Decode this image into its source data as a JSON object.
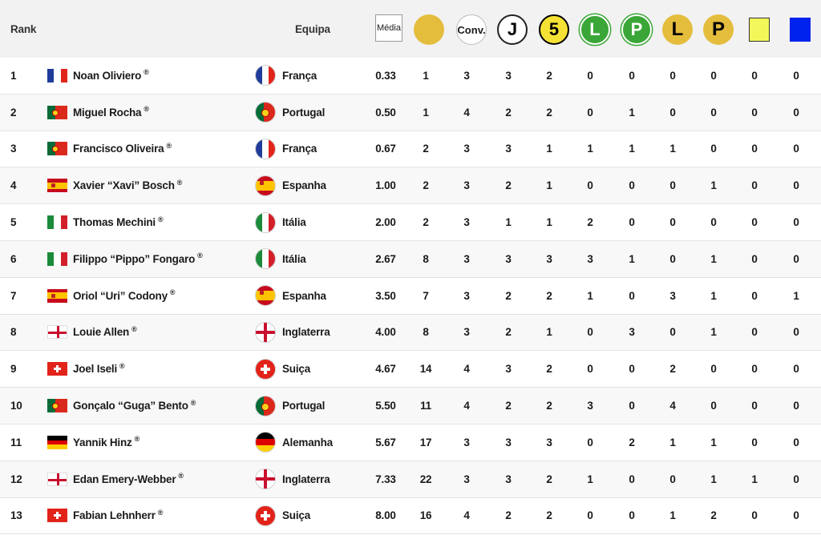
{
  "header": {
    "rank_label": "Rank",
    "team_label": "Equipa",
    "media_label": "Média",
    "conv_label": "Conv.",
    "j_label": "J",
    "five_label": "5",
    "green_l_label": "L",
    "green_p_label": "P",
    "yellow_l_label": "L",
    "yellow_p_label": "P"
  },
  "colors": {
    "green": "#3aa637",
    "gold": "#e5bd3d",
    "yellow_card": "#f4f75a",
    "blue_card": "#0022ee"
  },
  "rows": [
    {
      "rank": "1",
      "name": "Noan Oliviero",
      "flag": "fr",
      "team": "França",
      "team_flag": "fr",
      "media": "0.33",
      "v": [
        "1",
        "3",
        "3",
        "2",
        "0",
        "0",
        "0",
        "0",
        "0",
        "0"
      ]
    },
    {
      "rank": "2",
      "name": "Miguel Rocha",
      "flag": "pt",
      "team": "Portugal",
      "team_flag": "pt",
      "media": "0.50",
      "v": [
        "1",
        "4",
        "2",
        "2",
        "0",
        "1",
        "0",
        "0",
        "0",
        "0"
      ]
    },
    {
      "rank": "3",
      "name": "Francisco Oliveira",
      "flag": "pt",
      "team": "França",
      "team_flag": "fr",
      "media": "0.67",
      "v": [
        "2",
        "3",
        "3",
        "1",
        "1",
        "1",
        "1",
        "0",
        "0",
        "0"
      ]
    },
    {
      "rank": "4",
      "name": "Xavier “Xavi” Bosch",
      "flag": "es",
      "team": "Espanha",
      "team_flag": "es",
      "media": "1.00",
      "v": [
        "2",
        "3",
        "2",
        "1",
        "0",
        "0",
        "0",
        "1",
        "0",
        "0"
      ]
    },
    {
      "rank": "5",
      "name": "Thomas Mechini",
      "flag": "it",
      "team": "Itália",
      "team_flag": "it",
      "media": "2.00",
      "v": [
        "2",
        "3",
        "1",
        "1",
        "2",
        "0",
        "0",
        "0",
        "0",
        "0"
      ]
    },
    {
      "rank": "6",
      "name": "Filippo “Pippo” Fongaro",
      "flag": "it",
      "team": "Itália",
      "team_flag": "it",
      "media": "2.67",
      "v": [
        "8",
        "3",
        "3",
        "3",
        "3",
        "1",
        "0",
        "1",
        "0",
        "0"
      ]
    },
    {
      "rank": "7",
      "name": "Oriol “Uri” Codony",
      "flag": "es",
      "team": "Espanha",
      "team_flag": "es",
      "media": "3.50",
      "v": [
        "7",
        "3",
        "2",
        "2",
        "1",
        "0",
        "3",
        "1",
        "0",
        "1"
      ]
    },
    {
      "rank": "8",
      "name": "Louie Allen",
      "flag": "en",
      "team": "Inglaterra",
      "team_flag": "en",
      "media": "4.00",
      "v": [
        "8",
        "3",
        "2",
        "1",
        "0",
        "3",
        "0",
        "1",
        "0",
        "0"
      ]
    },
    {
      "rank": "9",
      "name": "Joel Iseli",
      "flag": "ch",
      "team": "Suiça",
      "team_flag": "ch",
      "media": "4.67",
      "v": [
        "14",
        "4",
        "3",
        "2",
        "0",
        "0",
        "2",
        "0",
        "0",
        "0"
      ]
    },
    {
      "rank": "10",
      "name": "Gonçalo “Guga” Bento",
      "flag": "pt",
      "team": "Portugal",
      "team_flag": "pt",
      "media": "5.50",
      "v": [
        "11",
        "4",
        "2",
        "2",
        "3",
        "0",
        "4",
        "0",
        "0",
        "0"
      ]
    },
    {
      "rank": "11",
      "name": "Yannik Hinz",
      "flag": "de",
      "team": "Alemanha",
      "team_flag": "de",
      "media": "5.67",
      "v": [
        "17",
        "3",
        "3",
        "3",
        "0",
        "2",
        "1",
        "1",
        "0",
        "0"
      ]
    },
    {
      "rank": "12",
      "name": "Edan Emery-Webber",
      "flag": "en",
      "team": "Inglaterra",
      "team_flag": "en",
      "media": "7.33",
      "v": [
        "22",
        "3",
        "3",
        "2",
        "1",
        "0",
        "0",
        "1",
        "1",
        "0"
      ]
    },
    {
      "rank": "13",
      "name": "Fabian Lehnherr",
      "flag": "ch",
      "team": "Suiça",
      "team_flag": "ch",
      "media": "8.00",
      "v": [
        "16",
        "4",
        "2",
        "2",
        "0",
        "0",
        "1",
        "2",
        "0",
        "0"
      ]
    }
  ],
  "registered_mark": "®"
}
